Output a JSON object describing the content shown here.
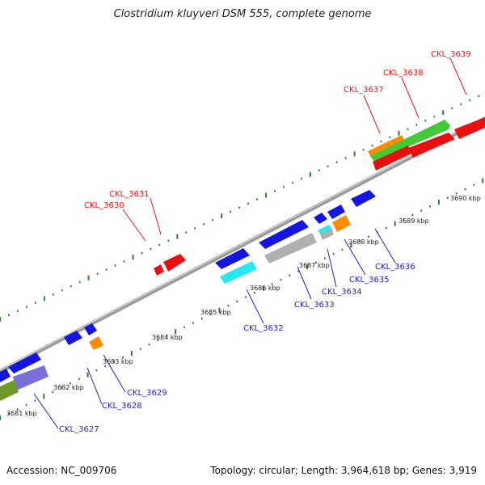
{
  "title": "Clostridium kluyveri DSM 555, complete genome",
  "footer": {
    "accession": "Accession: NC_009706",
    "topology": "Topology: circular; Length: 3,964,618 bp; Genes: 3,919"
  },
  "colors": {
    "backbone": "#9a9a9a",
    "tick": "#2e7d2e",
    "label_top": "#ee1111",
    "label_bottom": "#1f1fbf",
    "gene_red": "#e81010",
    "gene_blue": "#1515e0",
    "gene_green": "#44c83a",
    "gene_orange": "#ff8c00",
    "gene_cyan": "#27e8f0",
    "gene_gray": "#b0b0b0",
    "gene_purple": "#7b70d8",
    "gene_olive": "#6f9a2a"
  },
  "kbp_labels": [
    "3681 kbp",
    "3682 kbp",
    "3683 kbp",
    "3684 kbp",
    "3685 kbp",
    "3686 kbp",
    "3687 kbp",
    "3688 kbp",
    "3689 kbp",
    "3690 kbp"
  ],
  "gene_labels_top": [
    "CKL_3630",
    "CKL_3631",
    "CKL_3637",
    "CKL_3638",
    "CKL_3639"
  ],
  "gene_labels_bottom": [
    "CKL_3627",
    "CKL_3628",
    "CKL_3629",
    "CKL_3632",
    "CKL_3633",
    "CKL_3634",
    "CKL_3635",
    "CKL_3636"
  ]
}
